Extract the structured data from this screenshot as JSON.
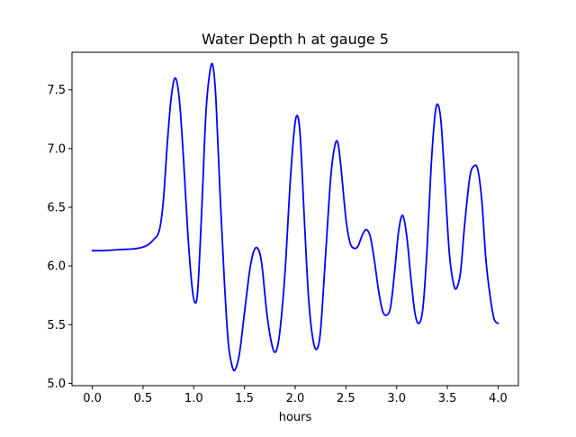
{
  "chart_data": {
    "type": "line",
    "title": "Water Depth h at gauge 5",
    "xlabel": "hours",
    "ylabel": "",
    "xlim": [
      -0.2,
      4.2
    ],
    "ylim": [
      4.98,
      7.82
    ],
    "xticks": [
      0.0,
      0.5,
      1.0,
      1.5,
      2.0,
      2.5,
      3.0,
      3.5,
      4.0
    ],
    "xtick_labels": [
      "0.0",
      "0.5",
      "1.0",
      "1.5",
      "2.0",
      "2.5",
      "3.0",
      "3.5",
      "4.0"
    ],
    "yticks": [
      5.0,
      5.5,
      6.0,
      6.5,
      7.0,
      7.5
    ],
    "ytick_labels": [
      "5.0",
      "5.5",
      "6.0",
      "6.5",
      "7.0",
      "7.5"
    ],
    "grid": false,
    "legend": "none",
    "series": [
      {
        "color": "#0000ff",
        "points": [
          [
            0.0,
            6.13
          ],
          [
            0.1,
            6.13
          ],
          [
            0.2,
            6.135
          ],
          [
            0.3,
            6.14
          ],
          [
            0.4,
            6.145
          ],
          [
            0.45,
            6.15
          ],
          [
            0.5,
            6.16
          ],
          [
            0.55,
            6.18
          ],
          [
            0.6,
            6.22
          ],
          [
            0.66,
            6.3
          ],
          [
            0.7,
            6.55
          ],
          [
            0.74,
            7.05
          ],
          [
            0.78,
            7.45
          ],
          [
            0.82,
            7.6
          ],
          [
            0.86,
            7.4
          ],
          [
            0.9,
            6.9
          ],
          [
            0.94,
            6.3
          ],
          [
            0.98,
            5.85
          ],
          [
            1.01,
            5.69
          ],
          [
            1.04,
            5.8
          ],
          [
            1.08,
            6.5
          ],
          [
            1.12,
            7.3
          ],
          [
            1.16,
            7.66
          ],
          [
            1.19,
            7.7
          ],
          [
            1.22,
            7.4
          ],
          [
            1.26,
            6.6
          ],
          [
            1.3,
            5.9
          ],
          [
            1.34,
            5.35
          ],
          [
            1.38,
            5.14
          ],
          [
            1.41,
            5.12
          ],
          [
            1.45,
            5.25
          ],
          [
            1.5,
            5.6
          ],
          [
            1.55,
            5.95
          ],
          [
            1.59,
            6.12
          ],
          [
            1.63,
            6.15
          ],
          [
            1.67,
            6.02
          ],
          [
            1.72,
            5.6
          ],
          [
            1.77,
            5.33
          ],
          [
            1.81,
            5.27
          ],
          [
            1.85,
            5.45
          ],
          [
            1.9,
            5.95
          ],
          [
            1.95,
            6.7
          ],
          [
            1.99,
            7.15
          ],
          [
            2.02,
            7.28
          ],
          [
            2.05,
            7.1
          ],
          [
            2.09,
            6.4
          ],
          [
            2.13,
            5.75
          ],
          [
            2.17,
            5.4
          ],
          [
            2.21,
            5.29
          ],
          [
            2.25,
            5.45
          ],
          [
            2.3,
            6.1
          ],
          [
            2.35,
            6.75
          ],
          [
            2.39,
            7.02
          ],
          [
            2.42,
            7.05
          ],
          [
            2.45,
            6.85
          ],
          [
            2.5,
            6.4
          ],
          [
            2.54,
            6.2
          ],
          [
            2.58,
            6.15
          ],
          [
            2.62,
            6.17
          ],
          [
            2.66,
            6.26
          ],
          [
            2.7,
            6.31
          ],
          [
            2.74,
            6.25
          ],
          [
            2.78,
            6.05
          ],
          [
            2.82,
            5.8
          ],
          [
            2.86,
            5.62
          ],
          [
            2.9,
            5.58
          ],
          [
            2.94,
            5.65
          ],
          [
            2.98,
            5.95
          ],
          [
            3.02,
            6.3
          ],
          [
            3.06,
            6.43
          ],
          [
            3.1,
            6.25
          ],
          [
            3.14,
            5.9
          ],
          [
            3.18,
            5.6
          ],
          [
            3.22,
            5.51
          ],
          [
            3.26,
            5.65
          ],
          [
            3.3,
            6.15
          ],
          [
            3.34,
            6.85
          ],
          [
            3.38,
            7.3
          ],
          [
            3.41,
            7.37
          ],
          [
            3.44,
            7.2
          ],
          [
            3.48,
            6.65
          ],
          [
            3.52,
            6.1
          ],
          [
            3.56,
            5.85
          ],
          [
            3.59,
            5.81
          ],
          [
            3.63,
            5.95
          ],
          [
            3.67,
            6.35
          ],
          [
            3.72,
            6.75
          ],
          [
            3.76,
            6.85
          ],
          [
            3.8,
            6.82
          ],
          [
            3.84,
            6.55
          ],
          [
            3.88,
            6.05
          ],
          [
            3.92,
            5.75
          ],
          [
            3.96,
            5.55
          ],
          [
            4.0,
            5.51
          ]
        ]
      }
    ]
  }
}
